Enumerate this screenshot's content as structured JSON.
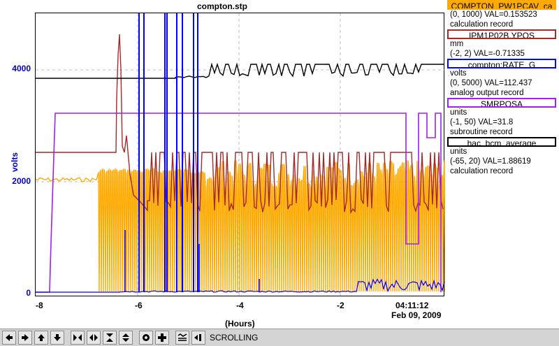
{
  "plot": {
    "title": "compton.stp",
    "y_axis_label": "volts",
    "x_axis_label": "(Hours)",
    "time_label": "04:11:12",
    "date_label": "Feb 09, 2009",
    "y_ticks": [
      "4000",
      "2000",
      "0"
    ],
    "x_ticks": [
      "-8",
      "-6",
      "-4",
      "-2"
    ]
  },
  "legend": [
    {
      "name": "COMPTON_PW1PCAV_ca",
      "color": "#ffaa00",
      "line1": "(0, 1000) VAL=0.153523",
      "line2": "calculation record"
    },
    {
      "name": "IPM1P02B.YPOS",
      "color": "#a52a2a",
      "line1": "mm",
      "line2": "(-2, 2) VAL=-0.71335"
    },
    {
      "name": "compton:RATE_G",
      "color": "#0000ff",
      "line1": "volts",
      "line2": "(0, 5000) VAL=112.437",
      "line3": "analog output record"
    },
    {
      "name": "SMRPOSA",
      "color": "#a020f0",
      "line1": "units",
      "line2": "(-1, 50) VAL=31.8",
      "line3": "subroutine record"
    },
    {
      "name": "hac_bcm_average",
      "color": "#000000",
      "line1": "units",
      "line2": "(-65, 20) VAL=1.88619",
      "line3": "calculation record"
    }
  ],
  "toolbar": {
    "buttons": [
      "arrow-left-icon",
      "arrow-right-icon",
      "arrow-up-icon",
      "arrow-down-icon",
      "zoom-in-horizontal-icon",
      "zoom-out-horizontal-icon",
      "zoom-in-vertical-icon",
      "zoom-out-vertical-icon",
      "reset-icon",
      "add-icon",
      "auto-scale-icon",
      "scroll-icon"
    ],
    "status": "SCROLLING"
  }
}
